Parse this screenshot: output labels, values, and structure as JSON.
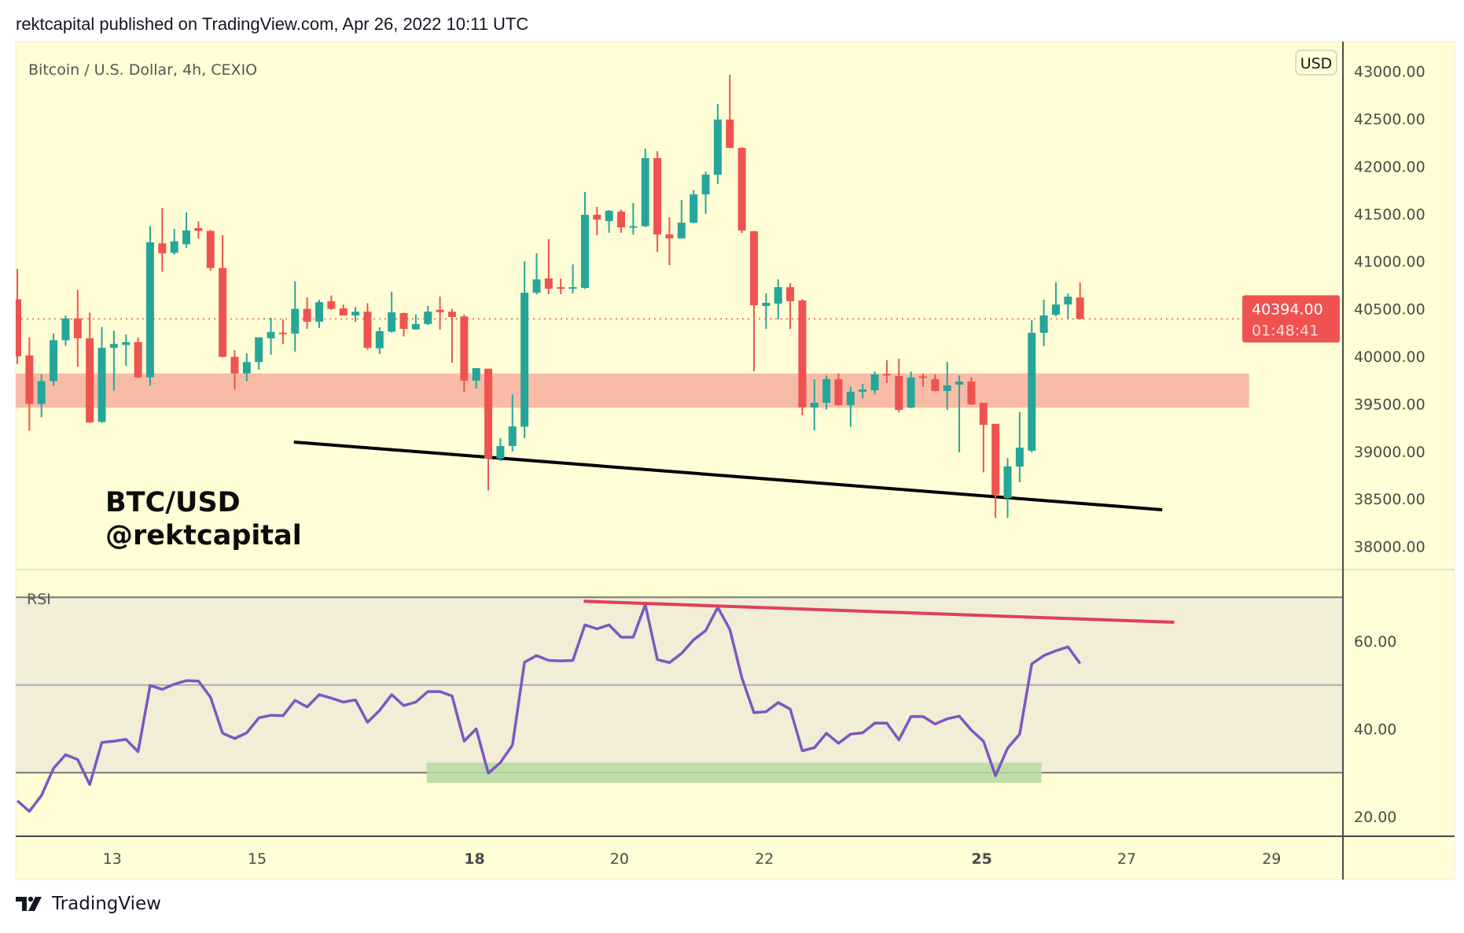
{
  "header": {
    "published": "rektcapital published on TradingView.com, Apr 26, 2022 10:11 UTC"
  },
  "symbol_title": "Bitcoin / U.S. Dollar, 4h, CEXIO",
  "currency_badge": "USD",
  "watermark": {
    "line1": "BTC/USD",
    "line2": "@rektcapital"
  },
  "last_price": {
    "price": "40394.00",
    "countdown": "01:48:41",
    "value": 40394
  },
  "rsi_pane": {
    "label": "RSI"
  },
  "footer": {
    "brand": "TradingView"
  },
  "colors": {
    "up": "#26a69a",
    "down": "#ef5350",
    "background": "#fffed6",
    "rsi_line": "#7e57c2",
    "rsi_trendline": "#e0405a",
    "zone": "#f8bba6",
    "rsi_zone": "#b5d9a0"
  },
  "chart_data": [
    {
      "type": "candlestick",
      "title": "Bitcoin / U.S. Dollar, 4h, CEXIO",
      "interval": "4h",
      "first_candle_day": 11.69,
      "ylim": [
        37700,
        43300
      ],
      "y_ticks": [
        "38000.00",
        "38500.00",
        "39000.00",
        "39500.00",
        "40000.00",
        "40500.00",
        "41000.00",
        "41500.00",
        "42000.00",
        "42500.00",
        "43000.00"
      ],
      "y_tick_values": [
        38000,
        38500,
        39000,
        39500,
        40000,
        40500,
        41000,
        41500,
        42000,
        42500,
        43000
      ],
      "x_ticks": [
        {
          "label": "13",
          "day": 13,
          "bold": false
        },
        {
          "label": "15",
          "day": 15,
          "bold": false
        },
        {
          "label": "18",
          "day": 18,
          "bold": true
        },
        {
          "label": "20",
          "day": 20,
          "bold": false
        },
        {
          "label": "22",
          "day": 22,
          "bold": false
        },
        {
          "label": "25",
          "day": 25,
          "bold": true
        },
        {
          "label": "27",
          "day": 27,
          "bold": false
        },
        {
          "label": "29",
          "day": 29,
          "bold": false
        }
      ],
      "ohlc_fields": [
        "open",
        "high",
        "low",
        "close"
      ],
      "candles": [
        [
          40600,
          40920,
          39920,
          40000
        ],
        [
          40010,
          40200,
          39220,
          39500
        ],
        [
          39500,
          39810,
          39360,
          39740
        ],
        [
          39740,
          40240,
          39690,
          40170
        ],
        [
          40170,
          40430,
          40110,
          40400
        ],
        [
          40400,
          40700,
          39890,
          40190
        ],
        [
          40190,
          40460,
          39300,
          39305
        ],
        [
          39310,
          40310,
          39300,
          40090
        ],
        [
          40090,
          40270,
          39640,
          40130
        ],
        [
          40120,
          40230,
          39900,
          40150
        ],
        [
          40150,
          40200,
          39770,
          39780
        ],
        [
          39780,
          41370,
          39690,
          41200
        ],
        [
          41190,
          41560,
          40890,
          41085
        ],
        [
          41090,
          41340,
          41070,
          41210
        ],
        [
          41180,
          41515,
          41140,
          41325
        ],
        [
          41350,
          41420,
          41240,
          41320
        ],
        [
          41320,
          41330,
          40900,
          40930
        ],
        [
          40930,
          41275,
          39990,
          39995
        ],
        [
          39995,
          40066,
          39650,
          39820
        ],
        [
          39820,
          40030,
          39740,
          39940
        ],
        [
          39940,
          40200,
          39860,
          40200
        ],
        [
          40190,
          40406,
          40017,
          40257
        ],
        [
          40250,
          40390,
          40130,
          40240
        ],
        [
          40240,
          40790,
          40050,
          40500
        ],
        [
          40500,
          40620,
          40290,
          40365
        ],
        [
          40365,
          40595,
          40300,
          40570
        ],
        [
          40580,
          40640,
          40490,
          40500
        ],
        [
          40505,
          40545,
          40430,
          40430
        ],
        [
          40430,
          40520,
          40365,
          40470
        ],
        [
          40470,
          40560,
          40070,
          40090
        ],
        [
          40085,
          40306,
          40025,
          40265
        ],
        [
          40260,
          40680,
          40250,
          40463
        ],
        [
          40455,
          40460,
          40210,
          40290
        ],
        [
          40285,
          40440,
          40280,
          40340
        ],
        [
          40340,
          40530,
          40330,
          40470
        ],
        [
          40490,
          40630,
          40280,
          40465
        ],
        [
          40470,
          40500,
          39934,
          40415
        ],
        [
          40420,
          40440,
          39630,
          39745
        ],
        [
          39745,
          39876,
          39660,
          39876
        ],
        [
          39870,
          39870,
          38590,
          38925
        ],
        [
          38925,
          39140,
          38900,
          39056
        ],
        [
          39056,
          39600,
          39000,
          39263
        ],
        [
          39260,
          41000,
          39140,
          40670
        ],
        [
          40670,
          41085,
          40650,
          40810
        ],
        [
          40820,
          41234,
          40654,
          40712
        ],
        [
          40728,
          40820,
          40654,
          40712
        ],
        [
          40712,
          40968,
          40662,
          40728
        ],
        [
          40720,
          41730,
          40710,
          41490
        ],
        [
          41490,
          41573,
          41275,
          41440
        ],
        [
          41424,
          41540,
          41300,
          41532
        ],
        [
          41523,
          41545,
          41300,
          41357
        ],
        [
          41357,
          41614,
          41283,
          41370
        ],
        [
          41370,
          42185,
          41360,
          42086
        ],
        [
          42086,
          42160,
          41100,
          41283
        ],
        [
          41283,
          41465,
          40960,
          41242
        ],
        [
          41242,
          41647,
          41240,
          41407
        ],
        [
          41407,
          41750,
          41400,
          41705
        ],
        [
          41705,
          41945,
          41500,
          41912
        ],
        [
          41912,
          42657,
          41813,
          42492
        ],
        [
          42492,
          42964,
          42190,
          42194
        ],
        [
          42194,
          42200,
          41300,
          41325
        ],
        [
          41316,
          41320,
          39843,
          40538
        ],
        [
          40530,
          40662,
          40290,
          40563
        ],
        [
          40555,
          40810,
          40390,
          40728
        ],
        [
          40728,
          40770,
          40290,
          40580
        ],
        [
          40588,
          40600,
          39380,
          39462
        ],
        [
          39462,
          39760,
          39222,
          39512
        ],
        [
          39512,
          39800,
          39440,
          39760
        ],
        [
          39760,
          39820,
          39480,
          39487
        ],
        [
          39487,
          39680,
          39260,
          39628
        ],
        [
          39628,
          39710,
          39560,
          39652
        ],
        [
          39644,
          39840,
          39600,
          39810
        ],
        [
          39815,
          39960,
          39720,
          39800
        ],
        [
          39793,
          39975,
          39410,
          39437
        ],
        [
          39462,
          39840,
          39455,
          39777
        ],
        [
          39790,
          39820,
          39680,
          39775
        ],
        [
          39760,
          39810,
          39630,
          39636
        ],
        [
          39636,
          39942,
          39437,
          39694
        ],
        [
          39702,
          39800,
          38990,
          39735
        ],
        [
          39735,
          39780,
          39490,
          39495
        ],
        [
          39512,
          39512,
          38780,
          39280
        ],
        [
          39290,
          39290,
          38300,
          38545
        ],
        [
          38510,
          38930,
          38300,
          38841
        ],
        [
          38841,
          39412,
          38676,
          39040
        ],
        [
          39007,
          40380,
          38990,
          40248
        ],
        [
          40248,
          40596,
          40108,
          40430
        ],
        [
          40438,
          40778,
          40420,
          40546
        ],
        [
          40546,
          40660,
          40400,
          40629
        ],
        [
          40620,
          40778,
          40390,
          40394
        ]
      ],
      "annotations": {
        "support_zone": {
          "from_index": -2,
          "to_index": 102,
          "low": 39460,
          "high": 39820
        },
        "trendline": {
          "from_index": 22.9,
          "from_price": 39098,
          "to_index": 94.8,
          "to_price": 38386
        }
      }
    },
    {
      "type": "line",
      "title": "RSI",
      "ylim": [
        15,
        77
      ],
      "y_ticks": [
        "20.00",
        "40.00",
        "60.00"
      ],
      "y_tick_values": [
        20,
        40,
        60
      ],
      "bands": {
        "upper": 70,
        "middle": 50,
        "lower": 30
      },
      "values": [
        23.6,
        21.2,
        24.8,
        31.0,
        34.1,
        33.0,
        27.3,
        36.9,
        37.2,
        37.6,
        34.8,
        49.9,
        49.0,
        50.2,
        51.0,
        50.9,
        47.2,
        39.0,
        37.8,
        39.1,
        42.5,
        43.1,
        43.0,
        46.5,
        45.0,
        47.8,
        47.0,
        46.1,
        46.6,
        41.5,
        44.2,
        47.8,
        45.3,
        46.1,
        48.5,
        48.5,
        47.5,
        37.2,
        40.0,
        29.9,
        32.3,
        36.3,
        55.2,
        56.7,
        55.6,
        55.5,
        55.6,
        63.7,
        62.8,
        63.7,
        60.9,
        60.9,
        68.3,
        55.8,
        55.1,
        57.2,
        60.3,
        62.4,
        67.7,
        62.7,
        51.6,
        43.7,
        43.9,
        46.0,
        44.5,
        35.0,
        35.7,
        39.0,
        36.7,
        38.8,
        39.1,
        41.3,
        41.3,
        37.5,
        42.8,
        42.8,
        41.1,
        42.3,
        42.9,
        39.7,
        37.2,
        29.3,
        35.6,
        38.8,
        54.8,
        56.7,
        57.8,
        58.7,
        54.9
      ],
      "annotations": {
        "trendline": {
          "from_index": 46.9,
          "from_value": 69.1,
          "to_index": 95.8,
          "to_value": 64.3
        },
        "oversold_zone": {
          "from_index": 33.9,
          "to_index": 84.8,
          "low": 27.7,
          "high": 32.3
        }
      }
    }
  ]
}
